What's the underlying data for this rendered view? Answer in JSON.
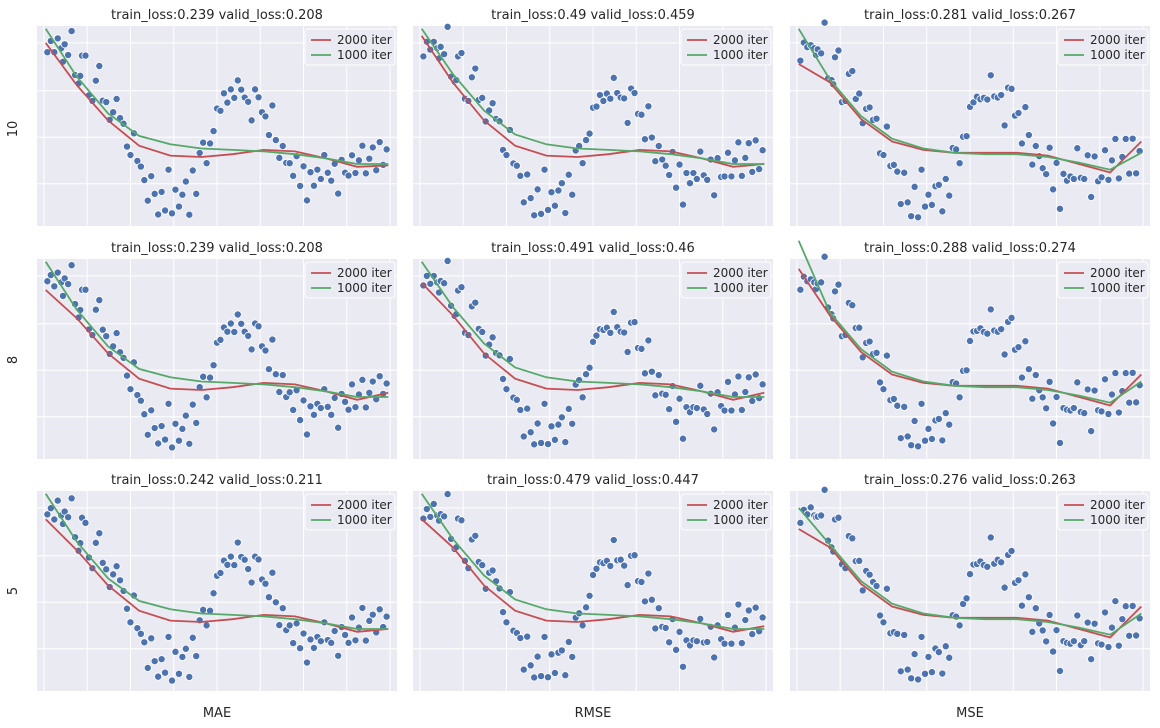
{
  "figure": {
    "columns": [
      "MAE",
      "RMSE",
      "MSE"
    ],
    "rows": [
      "10",
      "8",
      "5"
    ],
    "colors": {
      "background": "#ffffff",
      "panel": "#eaeaf2",
      "grid": "#ffffff",
      "scatter": "#4c72b0",
      "line_2000": "#c44e52",
      "line_1000": "#55a868"
    }
  },
  "chart_data": [
    {
      "type": "scatter",
      "title_train": "train_loss:0.239",
      "title_valid": "valid_loss:0.208",
      "row": "10",
      "column": "MAE",
      "series": [
        {
          "name": "2000 iter",
          "values": [
            1.0,
            0.7,
            0.45,
            0.27,
            0.2,
            0.19,
            0.21,
            0.24,
            0.23,
            0.18,
            0.12,
            0.13
          ]
        },
        {
          "name": "1000 iter",
          "values": [
            1.1,
            0.76,
            0.5,
            0.34,
            0.28,
            0.25,
            0.24,
            0.23,
            0.21,
            0.18,
            0.14,
            0.14
          ]
        }
      ],
      "legend": "top-right"
    },
    {
      "type": "scatter",
      "title_train": "train_loss:0.49",
      "title_valid": "valid_loss:0.459",
      "row": "10",
      "column": "RMSE",
      "series": [
        {
          "name": "2000 iter",
          "values": [
            1.05,
            0.72,
            0.45,
            0.27,
            0.2,
            0.19,
            0.21,
            0.24,
            0.23,
            0.18,
            0.12,
            0.14
          ]
        },
        {
          "name": "1000 iter",
          "values": [
            1.1,
            0.78,
            0.52,
            0.35,
            0.28,
            0.25,
            0.24,
            0.23,
            0.21,
            0.18,
            0.14,
            0.14
          ]
        }
      ],
      "legend": "top-right"
    },
    {
      "type": "scatter",
      "title_train": "train_loss:0.281",
      "title_valid": "valid_loss:0.267",
      "row": "10",
      "column": "MSE",
      "series": [
        {
          "name": "2000 iter",
          "values": [
            0.85,
            0.72,
            0.46,
            0.3,
            0.24,
            0.22,
            0.22,
            0.22,
            0.2,
            0.14,
            0.08,
            0.3
          ]
        },
        {
          "name": "1000 iter",
          "values": [
            1.1,
            0.74,
            0.48,
            0.32,
            0.25,
            0.22,
            0.21,
            0.21,
            0.19,
            0.15,
            0.1,
            0.22
          ]
        }
      ],
      "legend": "top-right"
    },
    {
      "type": "scatter",
      "title_train": "train_loss:0.239",
      "title_valid": "valid_loss:0.208",
      "row": "8",
      "column": "MAE",
      "series": [
        {
          "name": "2000 iter",
          "values": [
            0.9,
            0.7,
            0.45,
            0.27,
            0.2,
            0.19,
            0.21,
            0.24,
            0.23,
            0.18,
            0.12,
            0.17
          ]
        },
        {
          "name": "1000 iter",
          "values": [
            1.1,
            0.76,
            0.5,
            0.34,
            0.28,
            0.25,
            0.24,
            0.23,
            0.21,
            0.18,
            0.14,
            0.14
          ]
        }
      ],
      "legend": "top-right"
    },
    {
      "type": "scatter",
      "title_train": "train_loss:0.491",
      "title_valid": "valid_loss:0.46",
      "row": "8",
      "column": "RMSE",
      "series": [
        {
          "name": "2000 iter",
          "values": [
            0.95,
            0.72,
            0.45,
            0.27,
            0.2,
            0.19,
            0.21,
            0.24,
            0.23,
            0.18,
            0.12,
            0.17
          ]
        },
        {
          "name": "1000 iter",
          "values": [
            1.1,
            0.78,
            0.52,
            0.35,
            0.28,
            0.25,
            0.24,
            0.23,
            0.21,
            0.18,
            0.14,
            0.14
          ]
        }
      ],
      "legend": "top-right"
    },
    {
      "type": "scatter",
      "title_train": "train_loss:0.288",
      "title_valid": "valid_loss:0.274",
      "row": "8",
      "column": "MSE",
      "series": [
        {
          "name": "2000 iter",
          "values": [
            1.05,
            0.72,
            0.46,
            0.3,
            0.24,
            0.22,
            0.22,
            0.22,
            0.2,
            0.14,
            0.08,
            0.3
          ]
        },
        {
          "name": "1000 iter",
          "values": [
            1.25,
            0.74,
            0.48,
            0.32,
            0.25,
            0.22,
            0.21,
            0.21,
            0.19,
            0.15,
            0.1,
            0.25
          ]
        }
      ],
      "legend": "top-right"
    },
    {
      "type": "scatter",
      "title_train": "train_loss:0.242",
      "title_valid": "valid_loss:0.211",
      "row": "5",
      "column": "MAE",
      "series": [
        {
          "name": "2000 iter",
          "values": [
            0.92,
            0.7,
            0.45,
            0.27,
            0.2,
            0.19,
            0.21,
            0.24,
            0.23,
            0.18,
            0.12,
            0.14
          ]
        },
        {
          "name": "1000 iter",
          "values": [
            1.1,
            0.76,
            0.5,
            0.34,
            0.28,
            0.25,
            0.24,
            0.23,
            0.21,
            0.18,
            0.14,
            0.14
          ]
        }
      ],
      "legend": "top-right"
    },
    {
      "type": "scatter",
      "title_train": "train_loss:0.479",
      "title_valid": "valid_loss:0.447",
      "row": "5",
      "column": "RMSE",
      "series": [
        {
          "name": "2000 iter",
          "values": [
            0.92,
            0.72,
            0.45,
            0.27,
            0.2,
            0.19,
            0.21,
            0.24,
            0.23,
            0.18,
            0.12,
            0.16
          ]
        },
        {
          "name": "1000 iter",
          "values": [
            1.1,
            0.78,
            0.52,
            0.35,
            0.28,
            0.25,
            0.24,
            0.23,
            0.21,
            0.18,
            0.14,
            0.14
          ]
        }
      ],
      "legend": "top-right"
    },
    {
      "type": "scatter",
      "title_train": "train_loss:0.276",
      "title_valid": "valid_loss:0.263",
      "row": "5",
      "column": "MSE",
      "series": [
        {
          "name": "2000 iter",
          "values": [
            0.85,
            0.72,
            0.46,
            0.3,
            0.24,
            0.22,
            0.22,
            0.22,
            0.2,
            0.14,
            0.08,
            0.3
          ]
        },
        {
          "name": "1000 iter",
          "values": [
            1.0,
            0.74,
            0.48,
            0.32,
            0.25,
            0.22,
            0.21,
            0.21,
            0.19,
            0.15,
            0.1,
            0.25
          ]
        }
      ],
      "legend": "top-right"
    }
  ],
  "scatter_points": {
    "x": [
      0.01,
      0.02,
      0.03,
      0.04,
      0.05,
      0.055,
      0.06,
      0.07,
      0.08,
      0.09,
      0.1,
      0.105,
      0.11,
      0.12,
      0.13,
      0.14,
      0.15,
      0.16,
      0.17,
      0.18,
      0.19,
      0.2,
      0.21,
      0.22,
      0.23,
      0.24,
      0.25,
      0.26,
      0.27,
      0.28,
      0.29,
      0.3,
      0.31,
      0.32,
      0.33,
      0.34,
      0.35,
      0.36,
      0.37,
      0.38,
      0.39,
      0.4,
      0.41,
      0.42,
      0.43,
      0.44,
      0.45,
      0.46,
      0.47,
      0.48,
      0.49,
      0.5,
      0.51,
      0.52,
      0.53,
      0.54,
      0.55,
      0.56,
      0.57,
      0.58,
      0.59,
      0.6,
      0.61,
      0.62,
      0.63,
      0.64,
      0.65,
      0.66,
      0.67,
      0.68,
      0.69,
      0.7,
      0.71,
      0.72,
      0.73,
      0.74,
      0.75,
      0.76,
      0.77,
      0.78,
      0.79,
      0.8,
      0.81,
      0.82,
      0.83,
      0.84,
      0.85,
      0.86,
      0.87,
      0.88,
      0.89,
      0.9,
      0.91,
      0.92,
      0.93,
      0.94,
      0.95,
      0.96,
      0.97,
      0.98,
      0.99
    ],
    "y": [
      0.98,
      1.02,
      0.9,
      1.06,
      0.95,
      0.85,
      1.0,
      0.92,
      1.05,
      0.8,
      0.7,
      0.78,
      0.92,
      0.88,
      0.66,
      0.58,
      0.72,
      0.85,
      0.6,
      0.55,
      0.45,
      0.5,
      0.62,
      0.48,
      0.4,
      0.3,
      0.2,
      0.35,
      0.18,
      0.1,
      0.0,
      -0.12,
      0.05,
      -0.05,
      -0.2,
      -0.08,
      -0.15,
      0.1,
      -0.25,
      -0.02,
      -0.18,
      -0.1,
      0.02,
      -0.22,
      0.12,
      -0.05,
      0.2,
      0.3,
      0.15,
      0.25,
      0.4,
      0.52,
      0.5,
      0.65,
      0.58,
      0.7,
      0.6,
      0.72,
      0.68,
      0.62,
      0.55,
      0.48,
      0.66,
      0.6,
      0.52,
      0.45,
      0.38,
      0.55,
      0.3,
      0.2,
      0.28,
      0.12,
      0.18,
      0.05,
      0.15,
      0.0,
      0.1,
      -0.08,
      0.08,
      -0.02,
      0.12,
      0.05,
      0.18,
      0.08,
      0.02,
      0.1,
      -0.05,
      0.15,
      0.12,
      0.06,
      0.2,
      0.1,
      0.15,
      0.25,
      0.08,
      0.18,
      0.22,
      0.12,
      0.28,
      0.18,
      0.25
    ]
  }
}
